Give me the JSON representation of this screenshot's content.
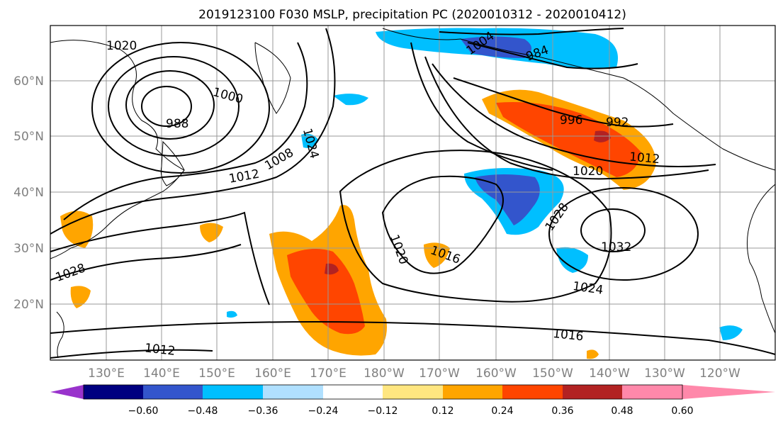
{
  "title": "2019123100 F030 MSLP, precipitation PC (2020010312 - 2020010412)",
  "lat_labels": [
    "60°N",
    "50°N",
    "40°N",
    "30°N",
    "20°N"
  ],
  "lon_labels": [
    "130°E",
    "140°E",
    "150°E",
    "160°E",
    "170°E",
    "180°W",
    "170°W",
    "160°W",
    "150°W",
    "140°W",
    "130°W",
    "120°W"
  ],
  "isobar_labels": [
    "1020",
    "1016",
    "1028",
    "1024",
    "1012",
    "1008",
    "996",
    "992",
    "988",
    "984",
    "1004",
    "1032",
    "1000"
  ],
  "colorbar": {
    "tick_labels": [
      "−0.60",
      "−0.48",
      "−0.36",
      "−0.24",
      "−0.12",
      "0.12",
      "0.24",
      "0.36",
      "0.48",
      "0.60"
    ],
    "colors": [
      "#9933cc",
      "#000080",
      "#3355cc",
      "#00bfff",
      "#b0e0ff",
      "#ffffff",
      "#ffe680",
      "#ffa500",
      "#ff4500",
      "#b22222",
      "#ff88aa"
    ]
  }
}
